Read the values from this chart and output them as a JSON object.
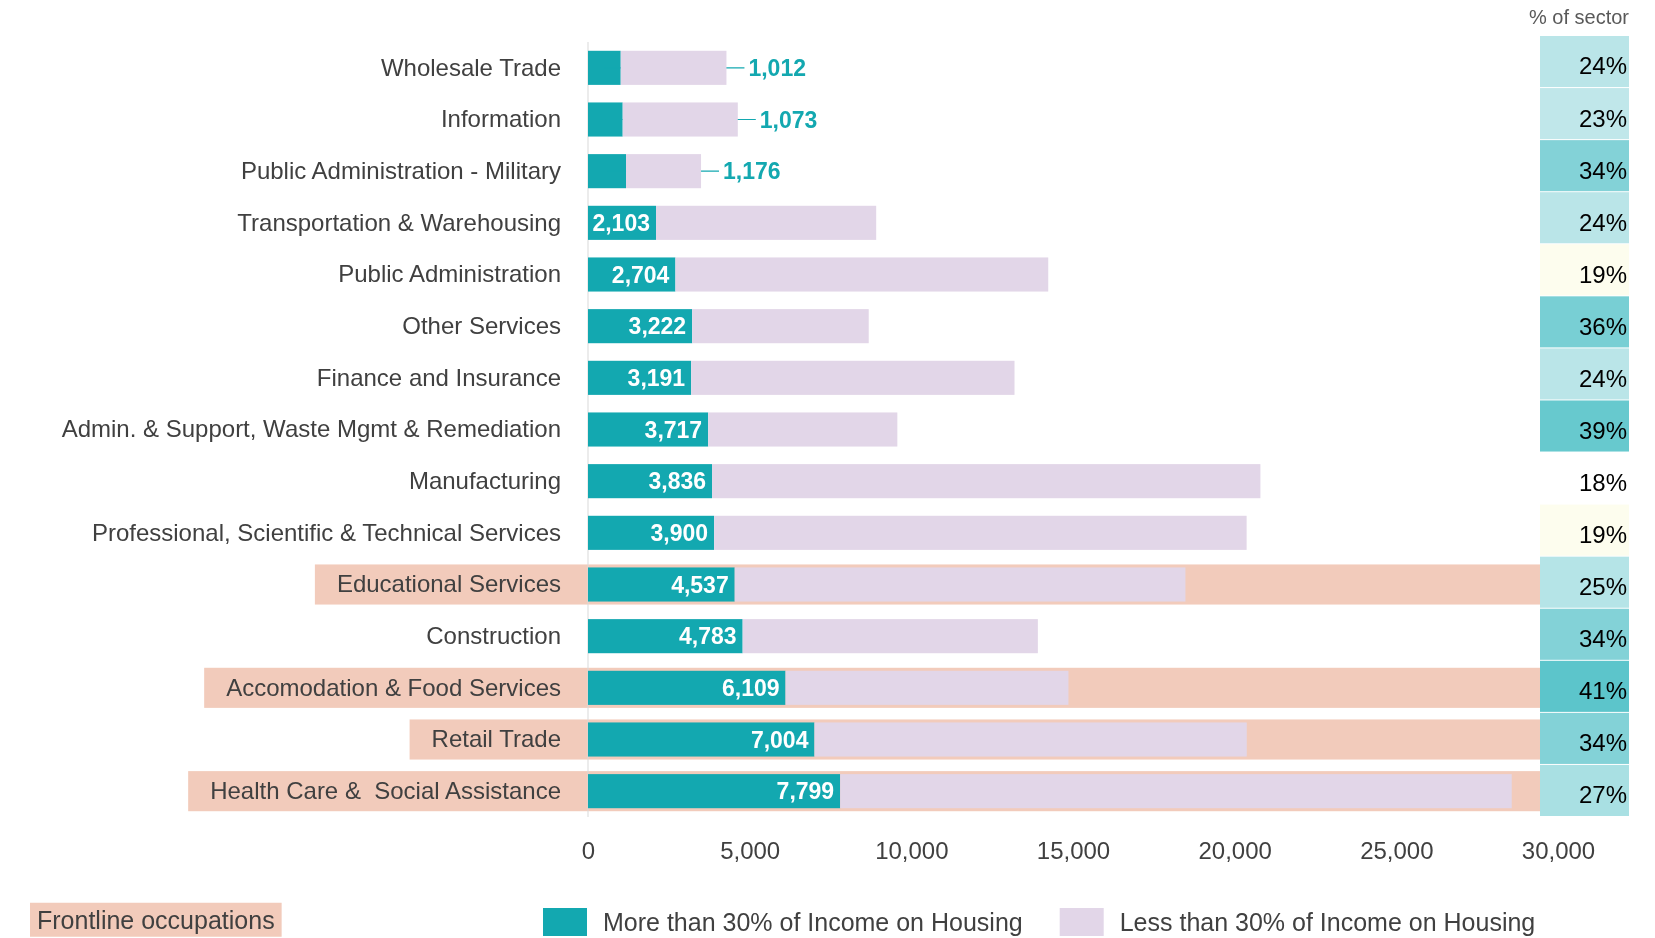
{
  "chart_data": [
    {
      "type": "bar",
      "orientation": "horizontal",
      "stacked": true,
      "categories": [
        "Wholesale Trade",
        "Information",
        "Public Administration - Military",
        "Transportation & Warehousing",
        "Public Administration",
        "Other Services",
        "Finance and Insurance",
        "Admin. & Support, Waste Mgmt & Remediation",
        "Manufacturing",
        "Professional, Scientific & Technical Services",
        "Educational Services",
        "Construction",
        "Accomodation & Food Services",
        "Retail Trade",
        "Health Care &  Social Assistance"
      ],
      "series": [
        {
          "name": "More than 30% of Income on Housing",
          "color": "#13a8b0",
          "values": [
            1012,
            1073,
            1176,
            2103,
            2704,
            3222,
            3191,
            3717,
            3836,
            3900,
            4537,
            4783,
            6109,
            7004,
            7799
          ],
          "value_labels": [
            "1,012",
            "1,073",
            "1,176",
            "2,103",
            "2,704",
            "3,222",
            "3,191",
            "3,717",
            "3,836",
            "3,900",
            "4,537",
            "4,783",
            "6,109",
            "7,004",
            "7,799"
          ]
        },
        {
          "name": "Less than 30% of Income on Housing",
          "color": "#e2d6e8",
          "values": [
            3270,
            3560,
            2320,
            6810,
            11530,
            5460,
            10000,
            5850,
            16960,
            16470,
            13940,
            9130,
            8750,
            13370,
            20770
          ]
        }
      ],
      "xlim": [
        0,
        30000
      ],
      "xticks": [
        {
          "value": 0,
          "label": "0"
        },
        {
          "value": 5000,
          "label": "5,000"
        },
        {
          "value": 10000,
          "label": "10,000"
        },
        {
          "value": 15000,
          "label": "15,000"
        },
        {
          "value": 20000,
          "label": "20,000"
        },
        {
          "value": 25000,
          "label": "25,000"
        },
        {
          "value": 30000,
          "label": "30,000"
        }
      ],
      "bands": [
        {
          "axis": "y",
          "from": "Educational Services",
          "to": "Educational Services",
          "color": "#f2cbbb"
        },
        {
          "axis": "y",
          "from": "Accomodation & Food Services",
          "to": "Accomodation & Food Services",
          "color": "#f2cbbb"
        },
        {
          "axis": "y",
          "from": "Retail Trade",
          "to": "Retail Trade",
          "color": "#f2cbbb"
        },
        {
          "axis": "y",
          "from": "Health Care &  Social Assistance",
          "to": "Health Care &  Social Assistance",
          "color": "#f2cbbb"
        }
      ],
      "annotations": [
        "Frontline occupations"
      ],
      "legend": "bottom",
      "grid": false
    },
    {
      "type": "heatmap",
      "categories": [
        "% of sector"
      ],
      "tick_labels": "x",
      "y_categories": [
        null,
        null,
        null,
        null,
        null,
        null,
        null,
        null,
        null,
        null,
        null,
        null,
        null,
        null,
        null
      ],
      "cells": [
        [
          24
        ],
        [
          23
        ],
        [
          34
        ],
        [
          24
        ],
        [
          19
        ],
        [
          36
        ],
        [
          24
        ],
        [
          39
        ],
        [
          18
        ],
        [
          19
        ],
        [
          25
        ],
        [
          34
        ],
        [
          41
        ],
        [
          34
        ],
        [
          27
        ]
      ],
      "cell_labels": [
        [
          "24%"
        ],
        [
          "23%"
        ],
        [
          "34%"
        ],
        [
          "24%"
        ],
        [
          "19%"
        ],
        [
          "36%"
        ],
        [
          "24%"
        ],
        [
          "39%"
        ],
        [
          "18%"
        ],
        [
          "19%"
        ],
        [
          "25%"
        ],
        [
          "34%"
        ],
        [
          "41%"
        ],
        [
          "34%"
        ],
        [
          "27%"
        ]
      ]
    }
  ]
}
